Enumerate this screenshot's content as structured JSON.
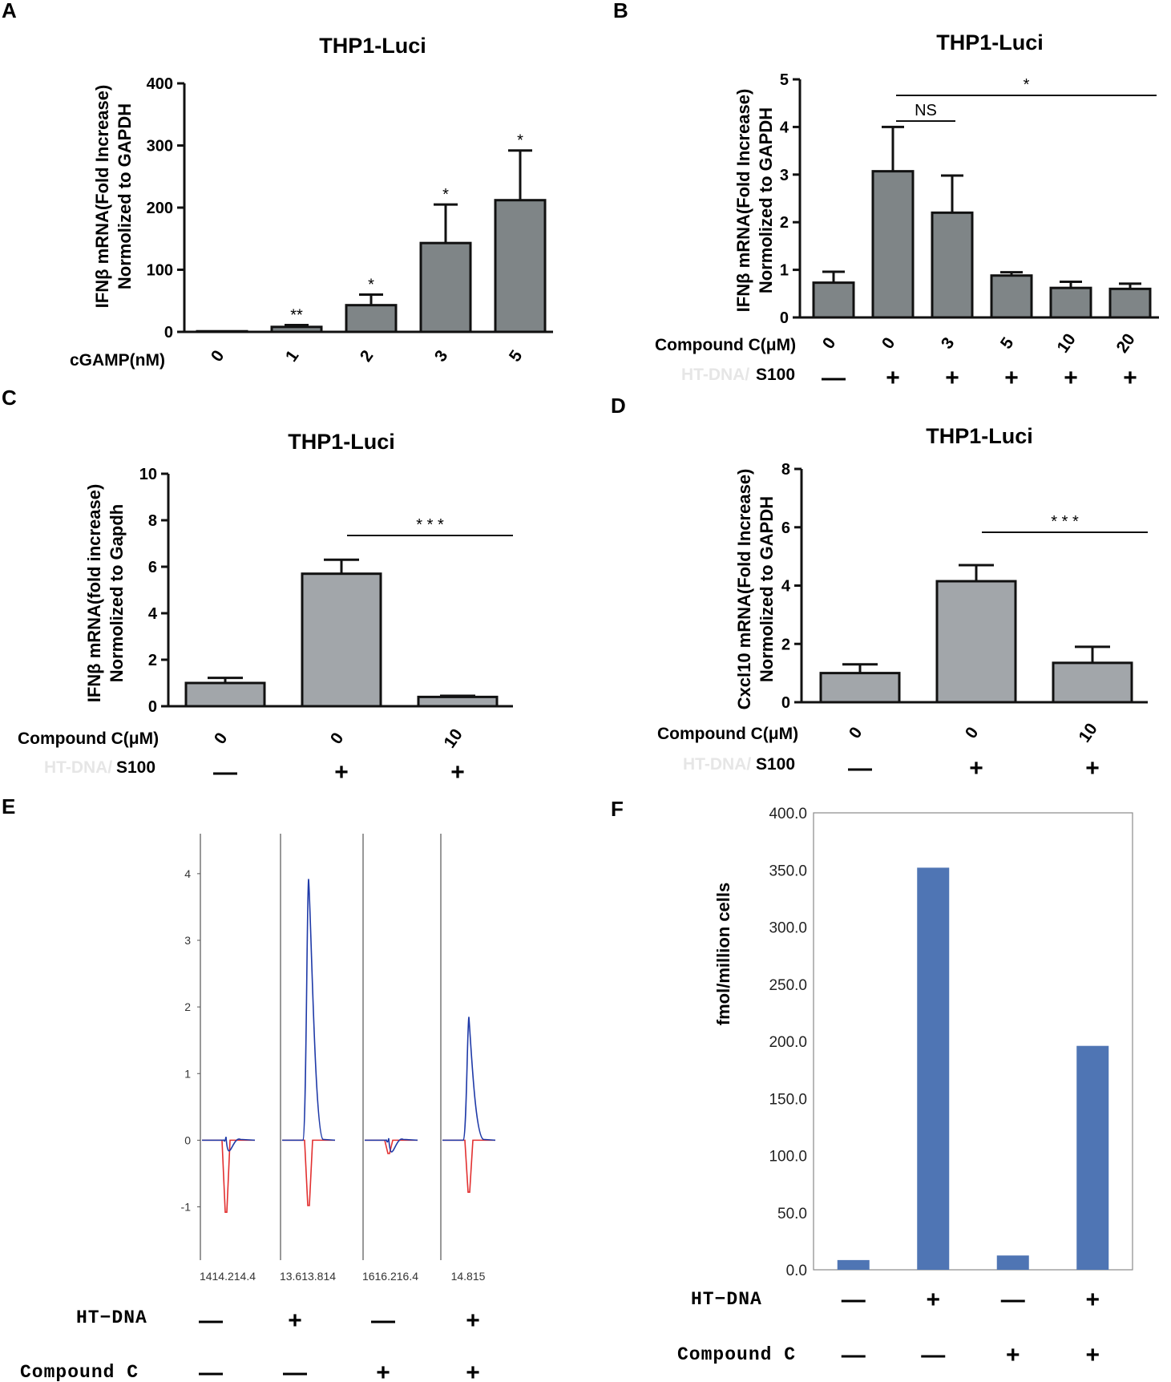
{
  "colors": {
    "bar_gray": "#7f8587",
    "bar_gray_light": "#a2a6aa",
    "bar_blue": "#4f75b4",
    "trace_blue": "#1f3aa8",
    "trace_red": "#e23030",
    "axis": "#111111"
  },
  "chart_data": [
    {
      "panel": "A",
      "type": "bar",
      "title": "THP1-Luci",
      "ylabel": [
        "IFNβ mRNA(Fold Increase)",
        "Normolized to GAPDH"
      ],
      "row_label": "cGAMP(nM)",
      "categories": [
        "0",
        "1",
        "2",
        "3",
        "5"
      ],
      "values": [
        1,
        8,
        43,
        143,
        212
      ],
      "errors": [
        0,
        3,
        17,
        62,
        80
      ],
      "significance": [
        "",
        "**",
        "*",
        "*",
        "*"
      ],
      "ylim": [
        0,
        400
      ],
      "yticks": [
        "0",
        "100",
        "200",
        "300",
        "400"
      ]
    },
    {
      "panel": "B",
      "type": "bar",
      "title": "THP1-Luci",
      "ylabel": [
        "IFNβ mRNA(Fold Increase)",
        "Normolized to GAPDH"
      ],
      "row_label": "Compound C(μM)",
      "categories": [
        "0",
        "0",
        "3",
        "5",
        "10",
        "20"
      ],
      "values": [
        0.73,
        3.07,
        2.2,
        0.88,
        0.62,
        0.6
      ],
      "errors": [
        0.23,
        0.93,
        0.78,
        0.07,
        0.13,
        0.11
      ],
      "row2_label": "S100",
      "row2_faint": "HT-DNA/",
      "row2_signs": [
        "—",
        "+",
        "+",
        "+",
        "+",
        "+"
      ],
      "brackets": [
        {
          "label": "NS"
        },
        {
          "label": "*"
        }
      ],
      "ylim": [
        0,
        5
      ],
      "yticks": [
        "0",
        "1",
        "2",
        "3",
        "4",
        "5"
      ]
    },
    {
      "panel": "C",
      "type": "bar",
      "title": "THP1-Luci",
      "ylabel": [
        "IFNβ mRNA(fold increase)",
        "Normolized to Gapdh"
      ],
      "row_label": "Compound C(μM)",
      "categories": [
        "0",
        "0",
        "10"
      ],
      "values": [
        1.0,
        5.7,
        0.4
      ],
      "errors": [
        0.22,
        0.6,
        0.05
      ],
      "row2_label": "S100",
      "row2_faint": "HT-DNA/",
      "row2_signs": [
        "—",
        "+",
        "+"
      ],
      "brackets": [
        {
          "label": "* * *"
        }
      ],
      "ylim": [
        0,
        10
      ],
      "yticks": [
        "0",
        "2",
        "4",
        "6",
        "8",
        "10"
      ]
    },
    {
      "panel": "D",
      "type": "bar",
      "title": "THP1-Luci",
      "ylabel": [
        "Cxcl10 mRNA(Fold Increase)",
        "Normolized to GAPDH"
      ],
      "row_label": "Compound C(μM)",
      "categories": [
        "0",
        "0",
        "10"
      ],
      "values": [
        1.0,
        4.15,
        1.35
      ],
      "errors": [
        0.3,
        0.55,
        0.55
      ],
      "row2_label": "S100",
      "row2_faint": "HT-DNA/",
      "row2_signs": [
        "—",
        "+",
        "+"
      ],
      "brackets": [
        {
          "label": "* * *"
        }
      ],
      "ylim": [
        0,
        8
      ],
      "yticks": [
        "0",
        "2",
        "4",
        "6",
        "8"
      ]
    },
    {
      "panel": "E",
      "type": "line",
      "yticks": [
        "4",
        "3",
        "2",
        "1",
        "0",
        "-1"
      ],
      "ylim": [
        -1.8,
        4.6
      ],
      "subplots": [
        {
          "x_ticks": "14 14.2 14.4",
          "x_tick_text": "1414.214.4",
          "blue_peak": 0.05,
          "red_peak": -1.08
        },
        {
          "x_ticks": "13.6 13.8 14",
          "x_tick_text": "13.613.814",
          "blue_peak": 3.92,
          "red_peak": -0.98
        },
        {
          "x_ticks": "16 16.2 16.4",
          "x_tick_text": "1616.216.4",
          "blue_peak": 0.03,
          "red_peak": -0.2
        },
        {
          "x_ticks": "14.8 15",
          "x_tick_text": "14.815",
          "blue_peak": 1.85,
          "red_peak": -0.78
        }
      ],
      "row1_label": "HT−DNA",
      "row1_signs": [
        "—",
        "+",
        "—",
        "+"
      ],
      "row2_label": "Compound C",
      "row2_signs": [
        "—",
        "—",
        "+",
        "+"
      ]
    },
    {
      "panel": "F",
      "type": "bar",
      "ylabel": "fmol/million cells",
      "values": [
        8.5,
        352.0,
        12.5,
        196.0
      ],
      "ylim": [
        0,
        400
      ],
      "yticks": [
        "0.0",
        "50.0",
        "100.0",
        "150.0",
        "200.0",
        "250.0",
        "300.0",
        "350.0",
        "400.0"
      ],
      "row1_label": "HT−DNA",
      "row1_signs": [
        "—",
        "+",
        "—",
        "+"
      ],
      "row2_label": "Compound C",
      "row2_signs": [
        "—",
        "—",
        "+",
        "+"
      ]
    }
  ]
}
